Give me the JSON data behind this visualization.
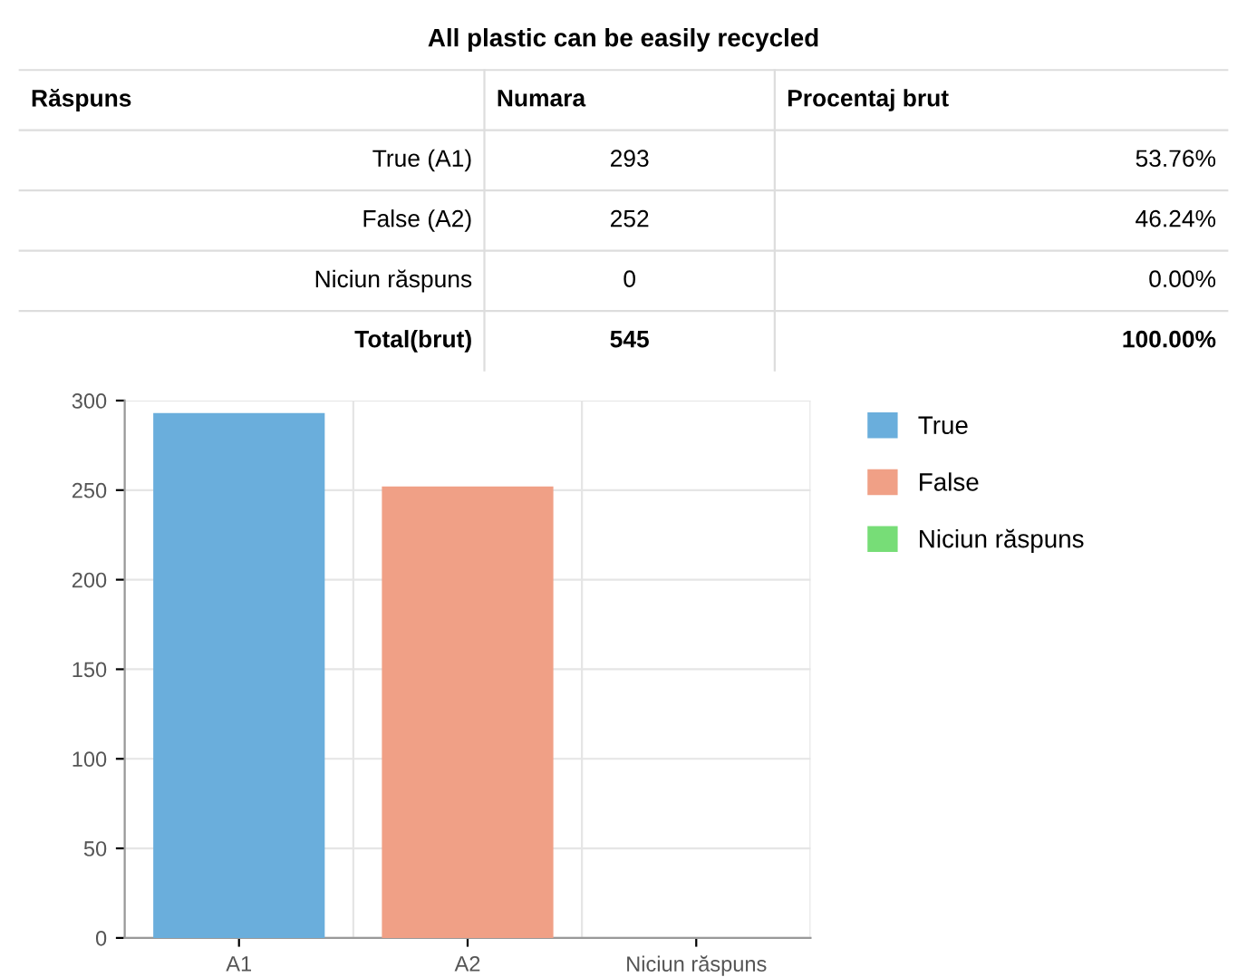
{
  "chart_data": [
    {
      "type": "other",
      "title": "All plastic can be easily recycled",
      "annotations": [
        "Răspuns"
      ],
      "categories": [
        "True (A1)",
        "False (A2)",
        "Niciun răspuns",
        "Total(brut)"
      ],
      "series": [
        {
          "name": "Numara",
          "values": [
            293,
            252,
            0,
            545
          ],
          "value_labels": [
            "293",
            "252",
            "0",
            "545"
          ]
        },
        {
          "name": "Procentaj brut",
          "values": [
            53.76,
            46.24,
            0.0,
            100.0
          ],
          "value_labels": [
            "53.76%",
            "46.24%",
            "0.00%",
            "100.00%"
          ]
        }
      ]
    },
    {
      "type": "bar",
      "categories": [
        "A1",
        "A2",
        "Niciun răspuns"
      ],
      "series": [
        {
          "name": "True",
          "color": "#6aaedc",
          "values": [
            293,
            null,
            null
          ]
        },
        {
          "name": "False",
          "color": "#f0a086",
          "values": [
            null,
            252,
            null
          ]
        },
        {
          "name": "Niciun răspuns",
          "color": "#77dd77",
          "values": [
            null,
            null,
            0
          ]
        }
      ],
      "ylim": [
        0,
        300
      ],
      "yticks": [
        0,
        50,
        100,
        150,
        200,
        250,
        300
      ],
      "grid": true,
      "legend": "top right"
    }
  ]
}
